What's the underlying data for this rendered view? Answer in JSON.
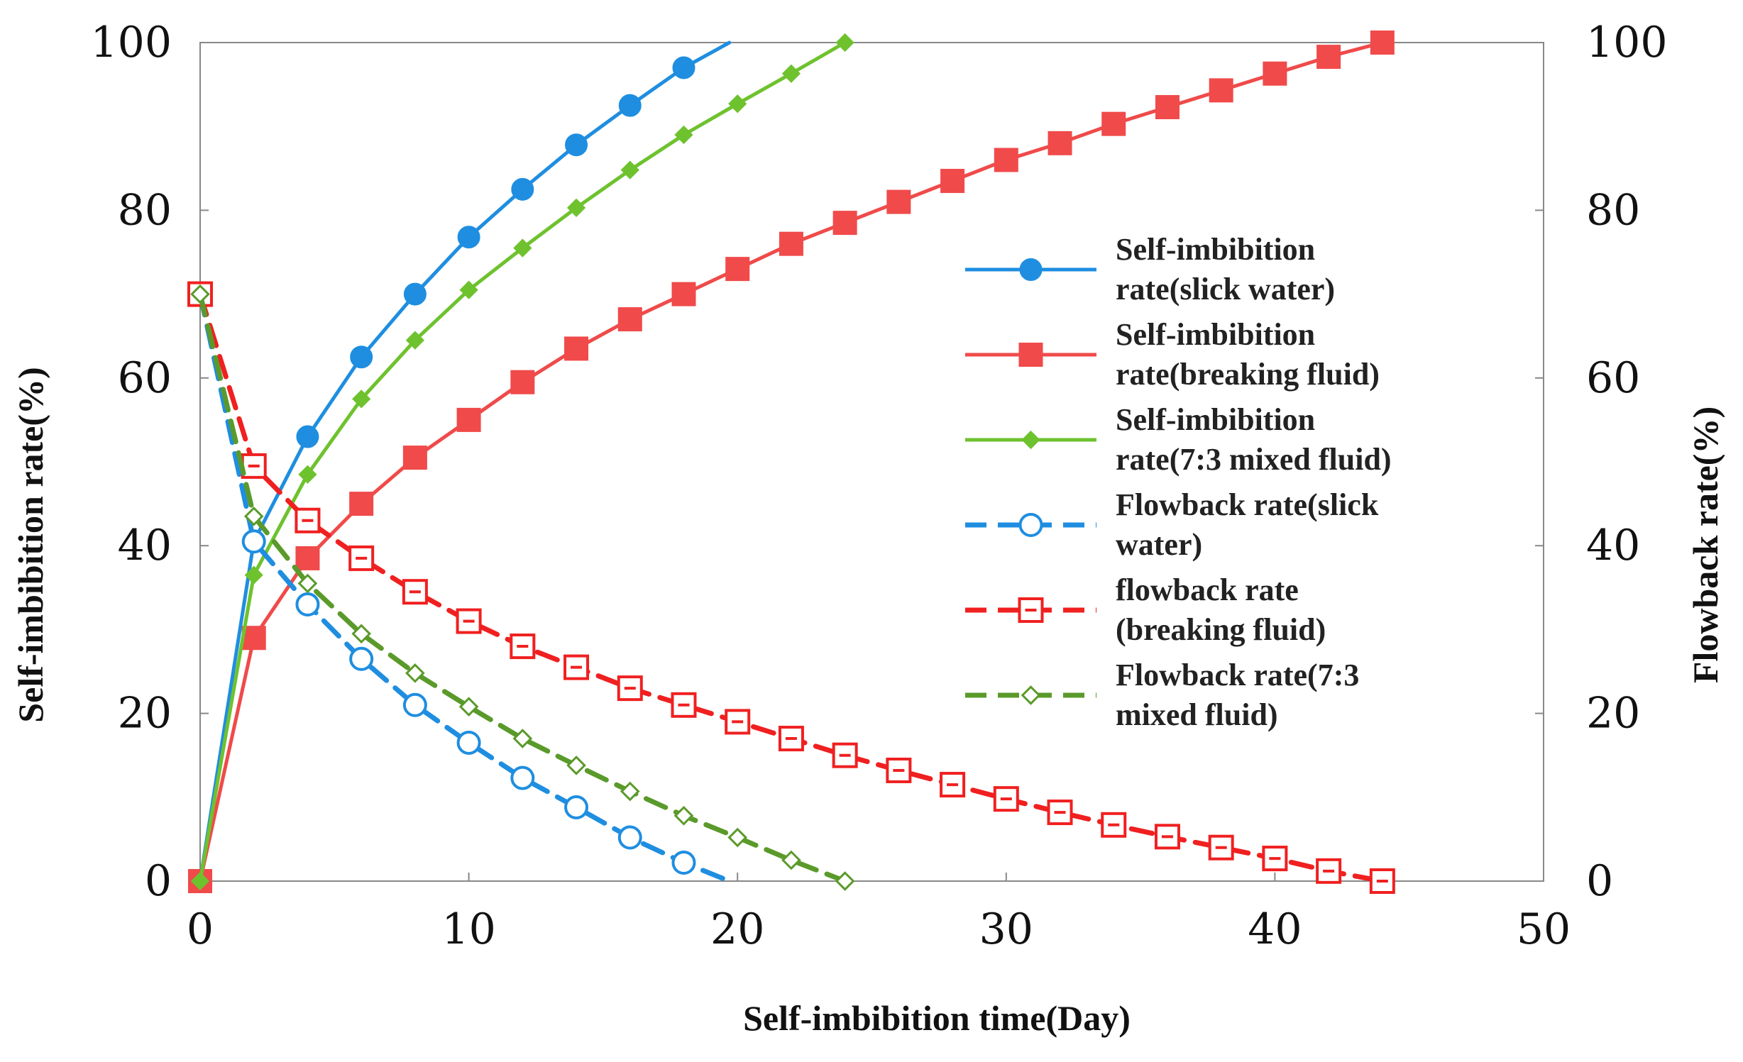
{
  "chart_data": {
    "type": "line",
    "xlabel": "Self-imbibition time(Day)",
    "ylabel_left": "Self-imbibition rate(%)",
    "ylabel_right": "Flowback rate(%)",
    "xlim": [
      0,
      50
    ],
    "ylim": [
      0,
      100
    ],
    "x_ticks": [
      "0",
      "10",
      "20",
      "30",
      "40",
      "50"
    ],
    "y_ticks": [
      "0",
      "20",
      "40",
      "60",
      "80",
      "100"
    ],
    "y2_ticks": [
      "0",
      "20",
      "40",
      "60",
      "80",
      "100"
    ],
    "legend_position": "right",
    "series": [
      {
        "name": "Self-imbibition rate(slick water)",
        "legend_lines": [
          "Self-imbibition",
          "rate(slick water)"
        ],
        "color": "#1f8ee0",
        "style": "solid",
        "marker": "circle-filled",
        "x": [
          0,
          2,
          4,
          6,
          8,
          10,
          12,
          14,
          16,
          18,
          19.7
        ],
        "y": [
          0,
          40.5,
          53,
          62.5,
          70,
          76.8,
          82.5,
          87.8,
          92.5,
          97,
          100
        ]
      },
      {
        "name": "Self-imbibition rate(breaking fluid)",
        "legend_lines": [
          "Self-imbibition",
          "rate(breaking fluid)"
        ],
        "color": "#f04a4a",
        "style": "solid",
        "marker": "square-filled",
        "x": [
          0,
          2,
          4,
          6,
          8,
          10,
          12,
          14,
          16,
          18,
          20,
          22,
          24,
          26,
          28,
          30,
          32,
          34,
          36,
          38,
          40,
          42,
          44
        ],
        "y": [
          0,
          29,
          38.5,
          45,
          50.5,
          55,
          59.5,
          63.5,
          67,
          70,
          73,
          76,
          78.5,
          81,
          83.5,
          86,
          88,
          90.3,
          92.3,
          94.3,
          96.3,
          98.3,
          100
        ]
      },
      {
        "name": "Self-imbibition rate(7:3 mixed fluid)",
        "legend_lines": [
          "Self-imbibition",
          "rate(7:3 mixed fluid)"
        ],
        "color": "#6ec22e",
        "style": "solid",
        "marker": "diamond-filled",
        "x": [
          0,
          2,
          4,
          6,
          8,
          10,
          12,
          14,
          16,
          18,
          20,
          22,
          24
        ],
        "y": [
          0,
          36.5,
          48.5,
          57.5,
          64.5,
          70.5,
          75.5,
          80.3,
          84.8,
          89,
          92.7,
          96.3,
          100
        ]
      },
      {
        "name": "Flowback rate(slick water)",
        "legend_lines": [
          "Flowback rate(slick",
          "water)"
        ],
        "color": "#1f8ee0",
        "style": "dashed",
        "marker": "circle-open",
        "x": [
          0,
          2,
          4,
          6,
          8,
          10,
          12,
          14,
          16,
          18,
          19.7
        ],
        "y": [
          70,
          40.5,
          33,
          26.5,
          21,
          16.5,
          12.3,
          8.8,
          5.2,
          2.2,
          0
        ]
      },
      {
        "name": "flowback rate (breaking fluid)",
        "legend_lines": [
          "flowback rate",
          "(breaking fluid)"
        ],
        "color": "#f02020",
        "style": "dashed",
        "marker": "square-open",
        "x": [
          0,
          2,
          4,
          6,
          8,
          10,
          12,
          14,
          16,
          18,
          20,
          22,
          24,
          26,
          28,
          30,
          32,
          34,
          36,
          38,
          40,
          42,
          44
        ],
        "y": [
          70,
          49.5,
          43,
          38.5,
          34.5,
          31,
          28,
          25.5,
          23,
          21,
          19,
          17,
          15,
          13.2,
          11.5,
          9.8,
          8.2,
          6.7,
          5.3,
          4,
          2.7,
          1.2,
          0
        ]
      },
      {
        "name": "Flowback rate(7:3 mixed fluid)",
        "legend_lines": [
          "Flowback rate(7:3",
          "mixed fluid)"
        ],
        "color": "#5a9a2a",
        "style": "dashed",
        "marker": "diamond-open",
        "x": [
          0,
          2,
          4,
          6,
          8,
          10,
          12,
          14,
          16,
          18,
          20,
          22,
          24
        ],
        "y": [
          70,
          43.5,
          35.5,
          29.5,
          24.8,
          20.8,
          17,
          13.8,
          10.7,
          7.8,
          5.2,
          2.5,
          0
        ]
      }
    ]
  }
}
